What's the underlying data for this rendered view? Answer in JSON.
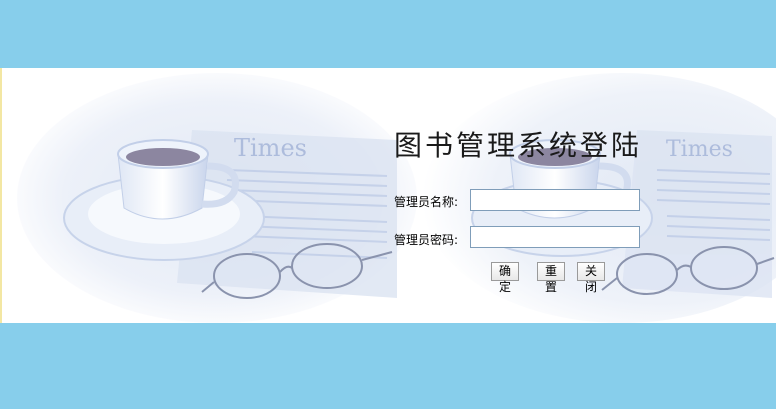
{
  "login": {
    "title": "图书管理系统登陆",
    "username_label": "管理员名称:",
    "password_label": "管理员密码:",
    "username_value": "",
    "password_value": "",
    "buttons": {
      "confirm": "确定",
      "reset": "重置",
      "close": "关闭"
    }
  },
  "colors": {
    "band": "#87ceeb",
    "art_blue": "#b7c6e6",
    "art_pale": "#e4eaf6"
  }
}
